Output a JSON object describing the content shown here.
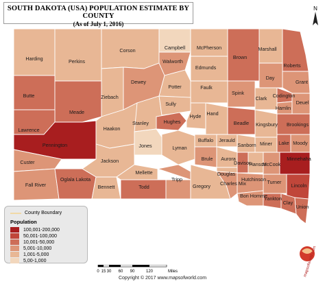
{
  "title": "SOUTH DAKOTA (USA) POPULATION ESTIMATE BY COUNTY",
  "subtitle": "(As of July 1, 2016)",
  "colors": {
    "c5": "#a81e1f",
    "c4": "#c0463a",
    "c3": "#cd6e58",
    "c2": "#dd9577",
    "c1": "#e8b795",
    "c0": "#f2d7bd"
  },
  "legend": {
    "boundary_label": "County Boundary",
    "title": "Population",
    "items": [
      {
        "label": "100,001-200,000",
        "color": "#a81e1f"
      },
      {
        "label": "50,001-100,000",
        "color": "#c0463a"
      },
      {
        "label": "10,001-50,000",
        "color": "#cd6e58"
      },
      {
        "label": "5,001-10,000",
        "color": "#dd9577"
      },
      {
        "label": "1,001-5,000",
        "color": "#e8b795"
      },
      {
        "label": "5,00-1,000",
        "color": "#f2d7bd"
      }
    ]
  },
  "scale": {
    "labels": [
      "0",
      "15",
      "30",
      "60",
      "90",
      "120"
    ],
    "unit": "Miles"
  },
  "copyright": "Copyright © 2017 www.mapsofworld.com",
  "logo_text": "mapsofworld.com",
  "compass_label": "N",
  "counties": [
    "Harding",
    "Perkins",
    "Corson",
    "Campbell",
    "McPherson",
    "Brown",
    "Marshall",
    "Roberts",
    "Butte",
    "Meade",
    "Ziebach",
    "Dewey",
    "Walworth",
    "Edmunds",
    "Day",
    "Grant",
    "Potter",
    "Faulk",
    "Spink",
    "Clark",
    "Codington",
    "Hamlin",
    "Deuel",
    "Lawrence",
    "Pennington",
    "Haakon",
    "Stanley",
    "Sully",
    "Hughes",
    "Hyde",
    "Hand",
    "Beadle",
    "Kingsbury",
    "Brookings",
    "Custer",
    "Jackson",
    "Jones",
    "Lyman",
    "Buffalo",
    "Jerauld",
    "Sanborn",
    "Miner",
    "Lake",
    "Moody",
    "Brule",
    "Aurora",
    "Davison",
    "Hanson",
    "McCook",
    "Minnehaha",
    "Fall River",
    "Oglala Lakota",
    "Bennett",
    "Mellette",
    "Todd",
    "Tripp",
    "Gregory",
    "Charles Mix",
    "Douglas",
    "Hutchinson",
    "Turner",
    "Lincoln",
    "Bon Homme",
    "Yankton",
    "Clay",
    "Union"
  ]
}
